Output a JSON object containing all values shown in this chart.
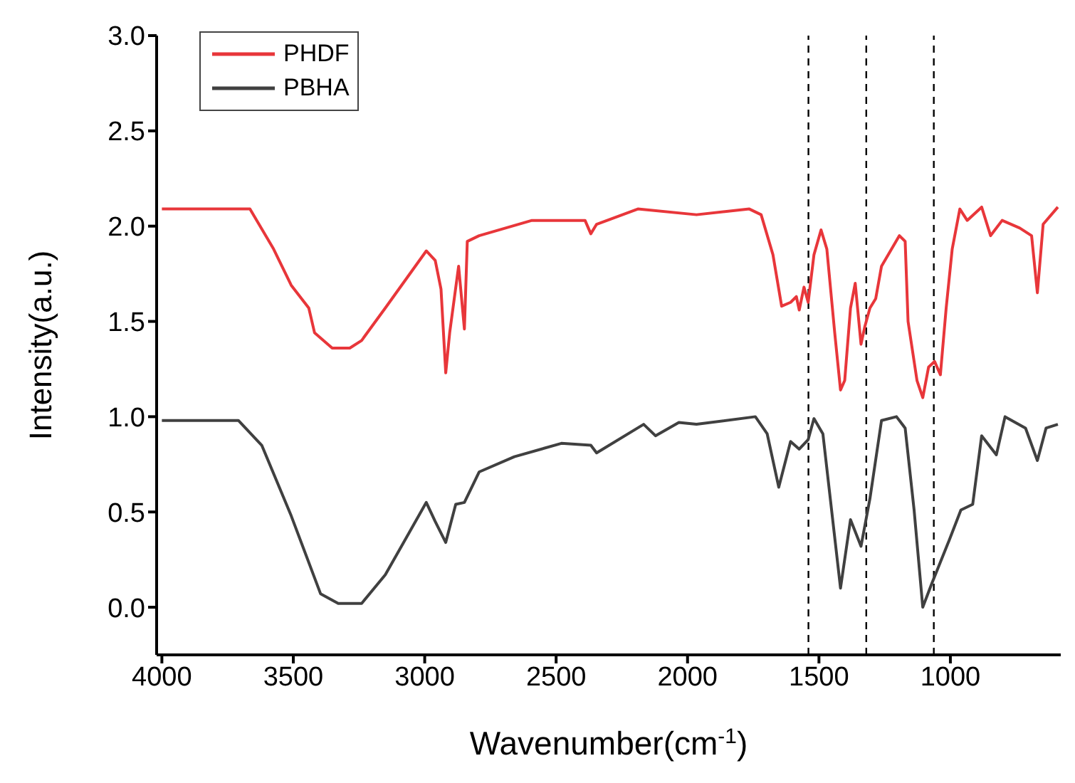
{
  "chart_data": {
    "type": "line",
    "xlabel": "Wavenumber(cm$^{-1}$)",
    "ylabel": "Intensity(a.u.)",
    "xlim": [
      4020,
      580
    ],
    "xticks": [
      4000,
      3500,
      3000,
      2500,
      2000,
      1500,
      1000
    ],
    "ylim": [
      -0.25,
      3.0
    ],
    "yticks": [
      {
        "value": 0,
        "label": "0.0"
      },
      {
        "value": 0.5,
        "label": "0.5"
      },
      {
        "value": 1,
        "label": "1.0"
      },
      {
        "value": 1.5,
        "label": "1.5"
      },
      {
        "value": 2,
        "label": "2.0"
      },
      {
        "value": 2.5,
        "label": "2.5"
      },
      {
        "value": 3,
        "label": "3.0"
      }
    ],
    "grid": false,
    "legend": "top left",
    "marker": "none",
    "line_style": "solid",
    "ref_lines": [
      {
        "axis": "x",
        "value": 1540,
        "color": "#000000",
        "line_style": "dashed"
      },
      {
        "axis": "x",
        "value": 1320,
        "color": "#000000",
        "line_style": "dashed"
      },
      {
        "axis": "x",
        "value": 1063,
        "color": "#000000",
        "line_style": "dashed"
      }
    ],
    "series": [
      {
        "name": "PHDF",
        "color": "#e8363a",
        "x": [
          4000,
          3665,
          3575,
          3508,
          3441,
          3419,
          3352,
          3285,
          3240,
          3150,
          2994,
          2960,
          2938,
          2920,
          2905,
          2871,
          2849,
          2838,
          2793,
          2592,
          2390,
          2368,
          2346,
          2189,
          1966,
          1765,
          1720,
          1675,
          1642,
          1608,
          1586,
          1575,
          1557,
          1541,
          1519,
          1492,
          1470,
          1440,
          1418,
          1402,
          1380,
          1362,
          1340,
          1326,
          1306,
          1284,
          1262,
          1194,
          1172,
          1161,
          1127,
          1105,
          1083,
          1060,
          1038,
          1016,
          993,
          964,
          936,
          881,
          847,
          803,
          736,
          691,
          669,
          647,
          591
        ],
        "values": [
          2.09,
          2.09,
          1.88,
          1.69,
          1.57,
          1.44,
          1.36,
          1.36,
          1.4,
          1.57,
          1.87,
          1.82,
          1.67,
          1.23,
          1.44,
          1.79,
          1.46,
          1.92,
          1.95,
          2.03,
          2.03,
          1.96,
          2.01,
          2.09,
          2.06,
          2.09,
          2.06,
          1.85,
          1.58,
          1.6,
          1.63,
          1.56,
          1.68,
          1.6,
          1.85,
          1.98,
          1.88,
          1.44,
          1.14,
          1.19,
          1.57,
          1.7,
          1.38,
          1.47,
          1.57,
          1.62,
          1.79,
          1.95,
          1.92,
          1.5,
          1.19,
          1.1,
          1.26,
          1.29,
          1.22,
          1.57,
          1.88,
          2.09,
          2.03,
          2.1,
          1.95,
          2.03,
          1.99,
          1.95,
          1.65,
          2.01,
          2.1
        ]
      },
      {
        "name": "PBHA",
        "color": "#404040",
        "x": [
          4000,
          3709,
          3620,
          3508,
          3396,
          3329,
          3240,
          3150,
          2994,
          2960,
          2920,
          2882,
          2849,
          2793,
          2659,
          2480,
          2368,
          2346,
          2167,
          2122,
          2033,
          1966,
          1742,
          1697,
          1653,
          1608,
          1575,
          1541,
          1519,
          1485,
          1418,
          1380,
          1340,
          1306,
          1262,
          1205,
          1172,
          1138,
          1105,
          1072,
          1005,
          960,
          915,
          881,
          825,
          792,
          714,
          669,
          636,
          591
        ],
        "values": [
          0.98,
          0.98,
          0.85,
          0.48,
          0.07,
          0.02,
          0.02,
          0.17,
          0.55,
          0.45,
          0.34,
          0.54,
          0.55,
          0.71,
          0.79,
          0.86,
          0.85,
          0.81,
          0.96,
          0.9,
          0.97,
          0.96,
          1.0,
          0.91,
          0.63,
          0.87,
          0.83,
          0.88,
          0.99,
          0.91,
          0.1,
          0.46,
          0.32,
          0.57,
          0.98,
          1.0,
          0.94,
          0.51,
          0.0,
          0.12,
          0.35,
          0.51,
          0.54,
          0.9,
          0.8,
          1.0,
          0.94,
          0.77,
          0.94,
          0.96
        ]
      }
    ]
  }
}
